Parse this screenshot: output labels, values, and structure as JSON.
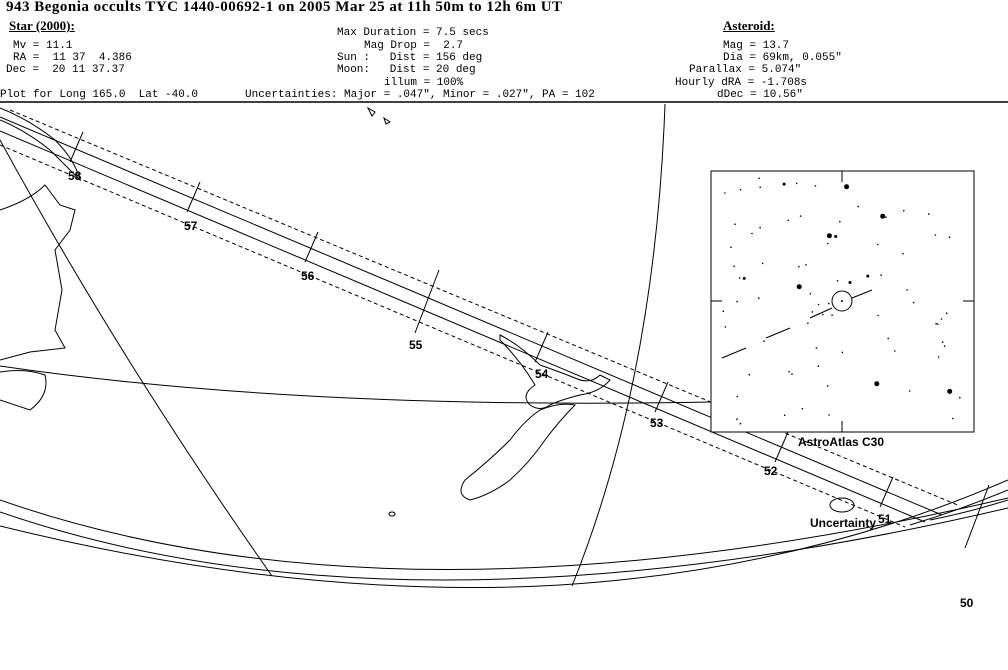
{
  "title": "943 Begonia occults TYC 1440-00692-1 on 2005 Mar 25 at 11h 50m to 12h 6m UT",
  "star": {
    "heading": "Star (2000):",
    "mv": "Mv = 11.1",
    "ra": "RA =  11 37  4.386",
    "dec": "Dec =  20 11 37.37"
  },
  "event": {
    "max_duration": "Max Duration = 7.5 secs",
    "mag_drop": "Mag Drop =  2.7",
    "sun": "Sun :   Dist = 156 deg",
    "moon": "Moon:   Dist = 20 deg",
    "illum": "illum = 100%"
  },
  "asteroid": {
    "heading": "Asteroid:",
    "mag": "Mag = 13.7",
    "dia": "Dia = 69km, 0.055\"",
    "parallax": "Parallax = 5.074\"",
    "hourly_dra": "Hourly dRA = -1.708s",
    "ddec": "dDec = 10.56\""
  },
  "plot_for": "Plot for Long 165.0  Lat -40.0",
  "uncertainties": "Uncertainties: Major = .047\", Minor = .027\", PA = 102",
  "map": {
    "time_ticks": [
      "58",
      "57",
      "56",
      "55",
      "54",
      "53",
      "52",
      "51",
      "50"
    ],
    "inset_label": "AstroAtlas C30",
    "uncertainty_label": "Uncertainty"
  }
}
